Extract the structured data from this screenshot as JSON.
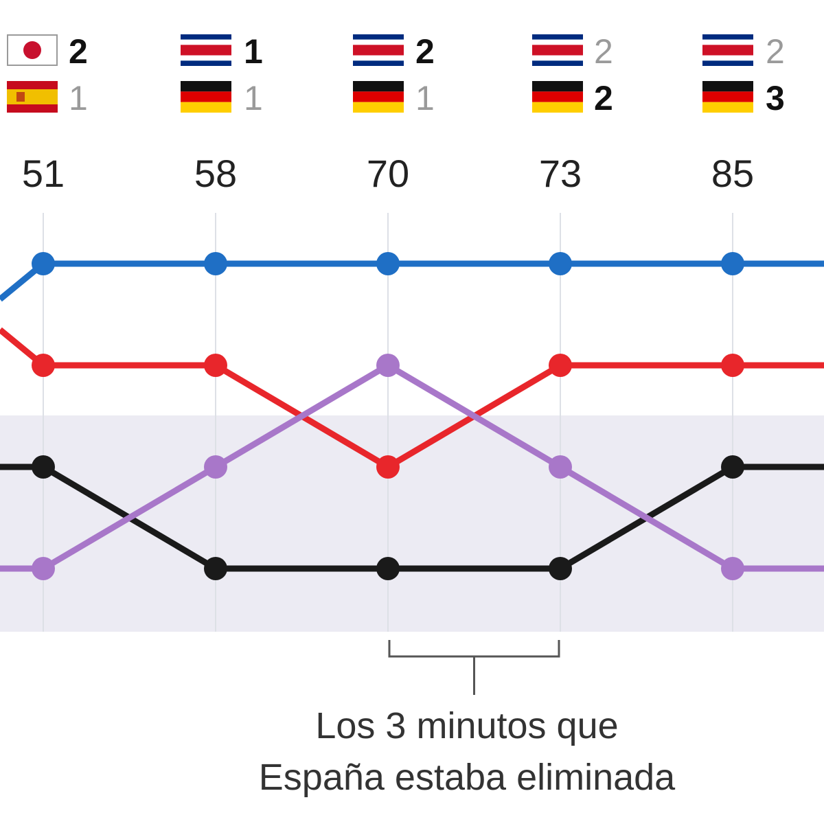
{
  "chart_data": {
    "type": "line",
    "title": "",
    "xlabel": "",
    "ylabel": "",
    "x": [
      "51",
      "58",
      "70",
      "73",
      "85"
    ],
    "rank_axis": {
      "top": 1,
      "bottom": 4,
      "inverted": true
    },
    "elimination_zone_ranks": [
      3,
      4
    ],
    "series": [
      {
        "key": "blue",
        "color": "#1f6fc5",
        "values": [
          1,
          1,
          1,
          1,
          1
        ],
        "incoming_from": 1.35
      },
      {
        "key": "red",
        "color": "#e8262b",
        "values": [
          2,
          2,
          3,
          2,
          2
        ],
        "incoming_from": 1.65
      },
      {
        "key": "black",
        "color": "#1a1a1a",
        "values": [
          3,
          4,
          4,
          4,
          3
        ],
        "incoming_from": 3
      },
      {
        "key": "purple",
        "color": "#a877c9",
        "values": [
          4,
          3,
          2,
          3,
          4
        ],
        "incoming_from": 4
      }
    ],
    "scoreboards": [
      {
        "minute": "51",
        "top": {
          "flag": "japan",
          "score": "2",
          "bold": true
        },
        "bottom": {
          "flag": "spain",
          "score": "1",
          "bold": false
        }
      },
      {
        "minute": "58",
        "top": {
          "flag": "costa-rica",
          "score": "1",
          "bold": true
        },
        "bottom": {
          "flag": "germany",
          "score": "1",
          "bold": false
        }
      },
      {
        "minute": "70",
        "top": {
          "flag": "costa-rica",
          "score": "2",
          "bold": true
        },
        "bottom": {
          "flag": "germany",
          "score": "1",
          "bold": false
        }
      },
      {
        "minute": "73",
        "top": {
          "flag": "costa-rica",
          "score": "2",
          "bold": false
        },
        "bottom": {
          "flag": "germany",
          "score": "2",
          "bold": true
        }
      },
      {
        "minute": "85",
        "top": {
          "flag": "costa-rica",
          "score": "2",
          "bold": false
        },
        "bottom": {
          "flag": "germany",
          "score": "3",
          "bold": true
        }
      }
    ],
    "annotation": {
      "from": "70",
      "to": "73",
      "lines": [
        "Los 3 minutos que",
        "España estaba eliminada"
      ]
    },
    "colors": {
      "grid": "#dde0e6",
      "zone": "#ecebf3",
      "bracket": "#555555"
    }
  }
}
